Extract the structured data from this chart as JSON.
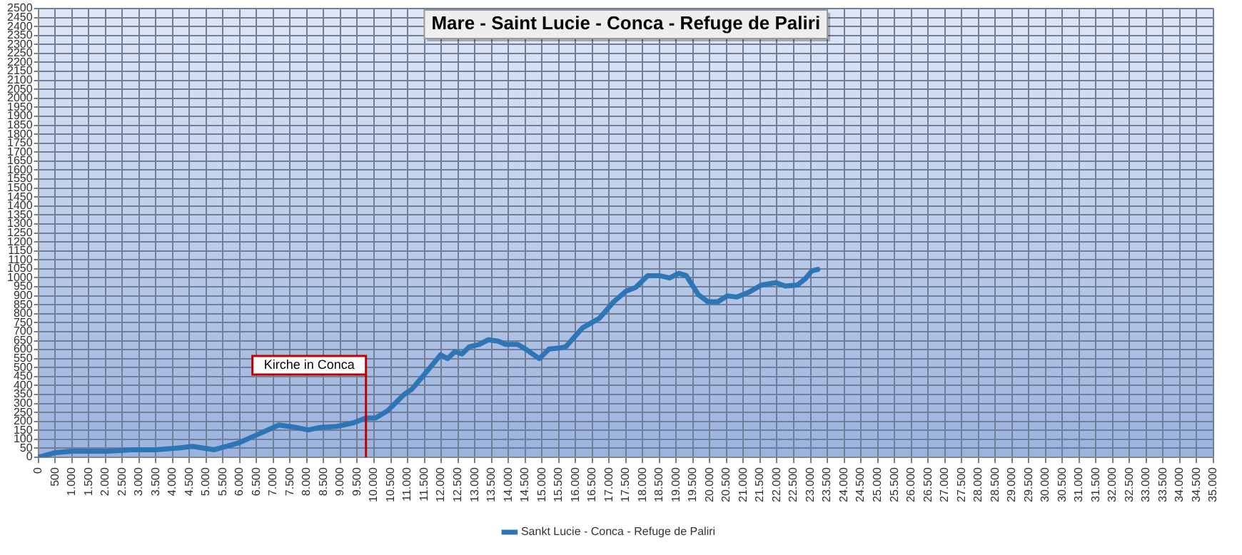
{
  "chart_data": {
    "type": "line",
    "title": "Mare - Saint Lucie - Conca - Refuge de Paliri",
    "x": [
      0,
      500,
      1000,
      2080,
      2800,
      3500,
      4230,
      4600,
      5240,
      5950,
      6530,
      7170,
      7680,
      8040,
      8390,
      8900,
      9400,
      9760,
      10040,
      10400,
      10900,
      11120,
      11480,
      11980,
      12190,
      12410,
      12620,
      12840,
      13130,
      13410,
      13700,
      13920,
      14280,
      14560,
      14920,
      15210,
      15490,
      15710,
      16210,
      16710,
      17140,
      17500,
      17790,
      18150,
      18500,
      18800,
      19080,
      19300,
      19660,
      19940,
      20240,
      20520,
      20810,
      21170,
      21540,
      21970,
      22250,
      22610,
      22840,
      23040,
      23220
    ],
    "series": [
      {
        "name": "Sankt Lucie - Conca - Refuge de Paliri",
        "color": "#2e75b6",
        "values": [
          0,
          26,
          34,
          34,
          42,
          42,
          53,
          61,
          42,
          79,
          127,
          180,
          166,
          153,
          166,
          172,
          193,
          219,
          219,
          259,
          351,
          378,
          457,
          571,
          550,
          589,
          576,
          616,
          629,
          655,
          647,
          629,
          629,
          597,
          550,
          603,
          608,
          616,
          721,
          774,
          867,
          925,
          946,
          1012,
          1012,
          999,
          1025,
          1012,
          906,
          867,
          867,
          899,
          893,
          920,
          960,
          973,
          954,
          960,
          994,
          1039,
          1047
        ]
      }
    ],
    "xlim": [
      0,
      35000
    ],
    "xticks": [
      0,
      500,
      {
        "value": 1000,
        "label": "1.000"
      },
      {
        "value": 1500,
        "label": "1.500"
      },
      {
        "value": 2000,
        "label": "2.000"
      },
      {
        "value": 2500,
        "label": "2.500"
      },
      {
        "value": 3000,
        "label": "3.000"
      },
      {
        "value": 3500,
        "label": "3.500"
      },
      {
        "value": 4000,
        "label": "4.000"
      },
      {
        "value": 4500,
        "label": "4.500"
      },
      {
        "value": 5000,
        "label": "5.000"
      },
      {
        "value": 5500,
        "label": "5.500"
      },
      {
        "value": 6000,
        "label": "6.000"
      },
      {
        "value": 6500,
        "label": "6.500"
      },
      {
        "value": 7000,
        "label": "7.000"
      },
      {
        "value": 7500,
        "label": "7.500"
      },
      {
        "value": 8000,
        "label": "8.000"
      },
      {
        "value": 8500,
        "label": "8.500"
      },
      {
        "value": 9000,
        "label": "9.000"
      },
      {
        "value": 9500,
        "label": "9.500"
      },
      {
        "value": 10000,
        "label": "10.000"
      },
      {
        "value": 10500,
        "label": "10.500"
      },
      {
        "value": 11000,
        "label": "11.000"
      },
      {
        "value": 11500,
        "label": "11.500"
      },
      {
        "value": 12000,
        "label": "12.000"
      },
      {
        "value": 12500,
        "label": "12.500"
      },
      {
        "value": 13000,
        "label": "13.000"
      },
      {
        "value": 13500,
        "label": "13.500"
      },
      {
        "value": 14000,
        "label": "14.000"
      },
      {
        "value": 14500,
        "label": "14.500"
      },
      {
        "value": 15000,
        "label": "15.000"
      },
      {
        "value": 15500,
        "label": "15.500"
      },
      {
        "value": 16000,
        "label": "16.000"
      },
      {
        "value": 16500,
        "label": "16.500"
      },
      {
        "value": 17000,
        "label": "17.000"
      },
      {
        "value": 17500,
        "label": "17.500"
      },
      {
        "value": 18000,
        "label": "18.000"
      },
      {
        "value": 18500,
        "label": "18.500"
      },
      {
        "value": 19000,
        "label": "19.000"
      },
      {
        "value": 19500,
        "label": "19.500"
      },
      {
        "value": 20000,
        "label": "20.000"
      },
      {
        "value": 20500,
        "label": "20.500"
      },
      {
        "value": 21000,
        "label": "21.000"
      },
      {
        "value": 21500,
        "label": "21.500"
      },
      {
        "value": 22000,
        "label": "22.000"
      },
      {
        "value": 22500,
        "label": "22.500"
      },
      {
        "value": 23000,
        "label": "23.000"
      },
      {
        "value": 23500,
        "label": "23.500"
      },
      {
        "value": 24000,
        "label": "24.000"
      },
      {
        "value": 24500,
        "label": "24.500"
      },
      {
        "value": 25000,
        "label": "25.000"
      },
      {
        "value": 25500,
        "label": "25.500"
      },
      {
        "value": 26000,
        "label": "26.000"
      },
      {
        "value": 26500,
        "label": "26.500"
      },
      {
        "value": 27000,
        "label": "27.000"
      },
      {
        "value": 27500,
        "label": "27.500"
      },
      {
        "value": 28000,
        "label": "28.000"
      },
      {
        "value": 28500,
        "label": "28.500"
      },
      {
        "value": 29000,
        "label": "29.000"
      },
      {
        "value": 29500,
        "label": "29.500"
      },
      {
        "value": 30000,
        "label": "30.000"
      },
      {
        "value": 30500,
        "label": "30.500"
      },
      {
        "value": 31000,
        "label": "31.000"
      },
      {
        "value": 31500,
        "label": "31.500"
      },
      {
        "value": 32000,
        "label": "32.000"
      },
      {
        "value": 32500,
        "label": "32.500"
      },
      {
        "value": 33000,
        "label": "33.000"
      },
      {
        "value": 33500,
        "label": "33.500"
      },
      {
        "value": 34000,
        "label": "34.000"
      },
      {
        "value": 34500,
        "label": "34.500"
      },
      {
        "value": 35000,
        "label": "35.000"
      }
    ],
    "ylim": [
      0,
      2500
    ],
    "yticks": [
      0,
      50,
      100,
      150,
      200,
      250,
      300,
      350,
      400,
      450,
      500,
      550,
      600,
      650,
      700,
      750,
      800,
      850,
      900,
      950,
      1000,
      1050,
      1100,
      1150,
      1200,
      1250,
      1300,
      1350,
      1400,
      1450,
      1500,
      1550,
      1600,
      1650,
      1700,
      1750,
      1800,
      1850,
      1900,
      1950,
      2000,
      2050,
      2100,
      2150,
      2200,
      2250,
      2300,
      2350,
      2400,
      2450,
      2500
    ],
    "ref_lines": [
      {
        "axis": "x",
        "value": 9760,
        "label": "Kirche in Conca",
        "color": "#c00000"
      }
    ],
    "grid": true,
    "legend": "bottom",
    "marker": "none",
    "line_style": "solid"
  }
}
